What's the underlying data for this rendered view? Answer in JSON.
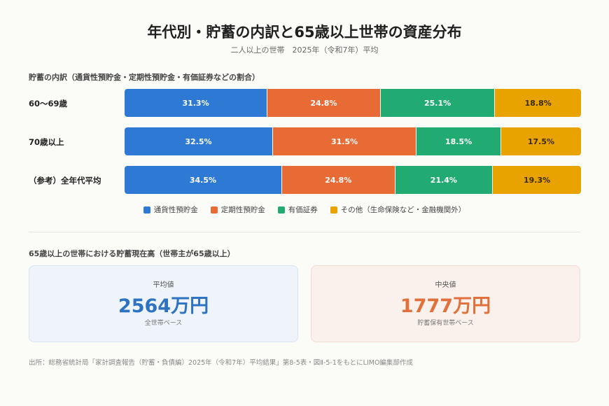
{
  "header": {
    "title": "年代別・貯蓄の内訳と65歳以上世帯の資産分布",
    "subtitle": "二人以上の世帯　2025年（令和7年）平均"
  },
  "breakdown_section_label": "貯蓄の内訳（通貨性預貯金・定期性預貯金・有価証券などの割合）",
  "colors": {
    "currency_deposits": "#2e79d3",
    "time_deposits": "#e86a34",
    "securities": "#21ab72",
    "other": "#e9a300"
  },
  "chart_data": {
    "type": "bar",
    "stacked": true,
    "orientation": "horizontal",
    "unit": "%",
    "categories": [
      "60〜69歳",
      "70歳以上",
      "（参考）全年代平均"
    ],
    "series": [
      {
        "name": "通貨性預貯金",
        "values": [
          31.3,
          32.5,
          34.5
        ],
        "color": "#2e79d3"
      },
      {
        "name": "定期性預貯金",
        "values": [
          24.8,
          31.5,
          24.8
        ],
        "color": "#e86a34"
      },
      {
        "name": "有価証券",
        "values": [
          25.1,
          18.5,
          21.4
        ],
        "color": "#21ab72"
      },
      {
        "name": "その他（生命保険など・金融機関外）",
        "values": [
          18.8,
          17.5,
          19.3
        ],
        "color": "#e9a300"
      }
    ],
    "legend": "bottom"
  },
  "holdings_section_label": "65歳以上の世帯における貯蓄現在高（世帯主が65歳以上）",
  "cards": {
    "average": {
      "label": "平均値",
      "value": "2564万円",
      "note": "全世帯ベース"
    },
    "median": {
      "label": "中央値",
      "value": "1777万円",
      "note": "貯蓄保有世帯ベース"
    }
  },
  "source": "出所：総務省統計局「家計調査報告（貯蓄・負債編）2025年（令和7年）平均結果」第8-5表・図Ⅱ-5-1をもとにLIMO編集部作成"
}
